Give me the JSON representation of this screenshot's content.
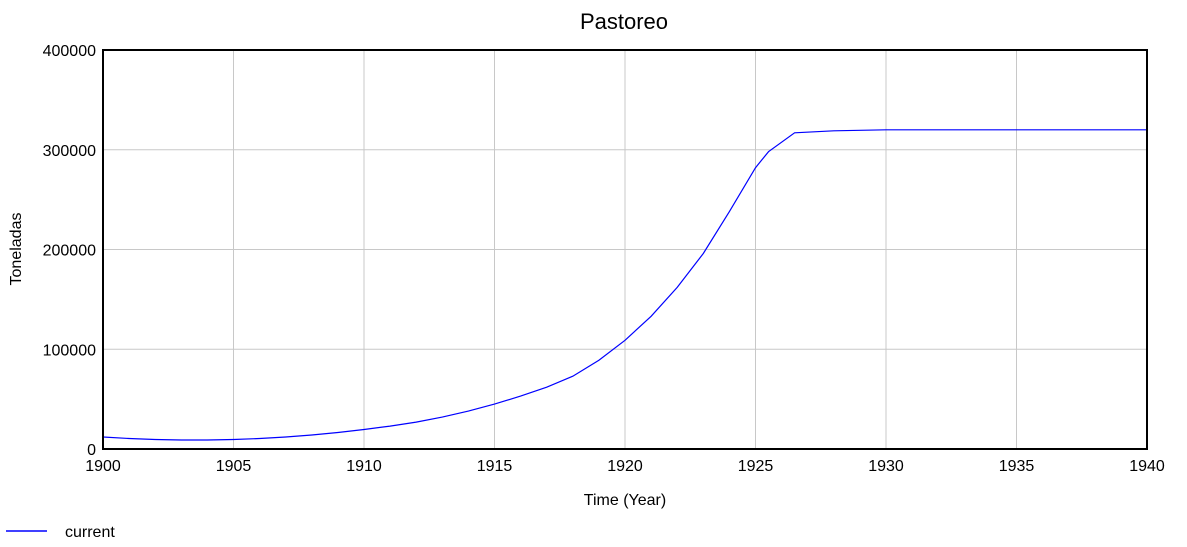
{
  "chart_data": {
    "type": "line",
    "title": "Pastoreo",
    "xlabel": "Time (Year)",
    "ylabel": "Toneladas",
    "xlim": [
      1900,
      1940
    ],
    "ylim": [
      0,
      400000
    ],
    "x_ticks": [
      1900,
      1905,
      1910,
      1915,
      1920,
      1925,
      1930,
      1935,
      1940
    ],
    "y_ticks": [
      0,
      100000,
      200000,
      300000,
      400000
    ],
    "grid": true,
    "legend_position": "bottom-left",
    "series": [
      {
        "name": "current",
        "color": "#0000ff",
        "x": [
          1900,
          1901,
          1902,
          1903,
          1904,
          1905,
          1906,
          1907,
          1908,
          1909,
          1910,
          1911,
          1912,
          1913,
          1914,
          1915,
          1916,
          1917,
          1918,
          1919,
          1920,
          1921,
          1922,
          1923,
          1924,
          1925,
          1925.5,
          1926.5,
          1928,
          1930,
          1932,
          1935,
          1940
        ],
        "y": [
          12000,
          10500,
          9500,
          9000,
          9000,
          9500,
          10500,
          12000,
          14000,
          16500,
          19500,
          23000,
          27000,
          32000,
          38000,
          45000,
          53000,
          62000,
          73000,
          89000,
          109000,
          133000,
          162000,
          196000,
          238000,
          282000,
          298000,
          317000,
          319000,
          320000,
          320000,
          320000,
          320000
        ]
      }
    ]
  }
}
